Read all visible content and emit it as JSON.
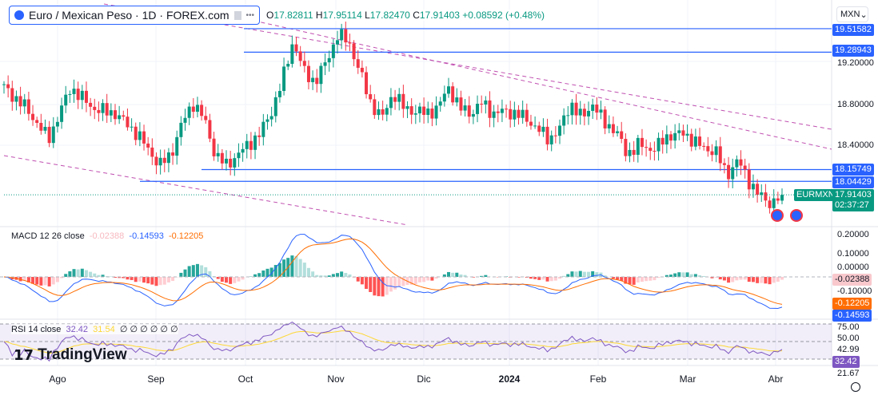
{
  "header": {
    "symbol_title": "Euro / Mexican Peso · 1D · FOREX.com",
    "open": "17.82811",
    "high": "17.95114",
    "low": "17.82470",
    "close": "17.91403",
    "change": "+0.08592 (+0.48%)",
    "currency": "MXN"
  },
  "colors": {
    "up": "#089981",
    "down": "#f23645",
    "line": "#2962ff",
    "macd": "#2962ff",
    "signal": "#ff6d00",
    "rsi": "#7e57c2",
    "rsi_ma": "#fdd835"
  },
  "price_axis": [
    "19.20000",
    "18.80000",
    "18.40000"
  ],
  "levels": [
    "19.51582",
    "19.28943",
    "18.15749",
    "18.04429"
  ],
  "last_price": {
    "symbol": "EURMXN",
    "value": "17.91403",
    "countdown": "02:37:27"
  },
  "macd": {
    "label": "MACD 12 26 close",
    "hist": "-0.02388",
    "macd": "-0.14593",
    "signal": "-0.12205",
    "axis": [
      "0.20000",
      "0.10000",
      "0.00000",
      "-0.10000"
    ]
  },
  "rsi": {
    "label": "RSI 14 close",
    "value": "32.42",
    "ma": "31.54",
    "extra": "∅ ∅ ∅ ∅ ∅ ∅",
    "axis": [
      "75.00",
      "50.00",
      "42.99",
      "21.67"
    ]
  },
  "branding": "TradingView",
  "chart_data": {
    "type": "candlestick",
    "title": "Euro / Mexican Peso · 1D · FOREX.com",
    "x_ticks": [
      "Ago",
      "Sep",
      "Oct",
      "Nov",
      "Dic",
      "2024",
      "Feb",
      "Mar",
      "Abr"
    ],
    "ylim": [
      17.7,
      19.6
    ],
    "approx_closes": [
      18.95,
      18.85,
      18.75,
      18.6,
      18.45,
      18.7,
      18.95,
      18.85,
      18.75,
      18.72,
      18.7,
      18.6,
      18.5,
      18.35,
      18.2,
      18.3,
      18.6,
      18.8,
      18.65,
      18.3,
      18.2,
      18.3,
      18.4,
      18.5,
      18.7,
      19.0,
      19.4,
      19.1,
      19.0,
      19.2,
      19.45,
      19.4,
      19.1,
      18.8,
      18.65,
      18.9,
      18.75,
      18.72,
      18.7,
      18.75,
      18.95,
      18.75,
      18.7,
      18.8,
      18.7,
      18.72,
      18.7,
      18.65,
      18.55,
      18.45,
      18.55,
      18.8,
      18.65,
      18.8,
      18.6,
      18.55,
      18.3,
      18.4,
      18.35,
      18.4,
      18.5,
      18.5,
      18.45,
      18.35,
      18.35,
      18.1,
      18.25,
      18.05,
      17.9,
      17.83,
      17.914
    ],
    "horizontal_levels": [
      19.51582,
      19.28943,
      18.15749,
      18.04429
    ]
  }
}
